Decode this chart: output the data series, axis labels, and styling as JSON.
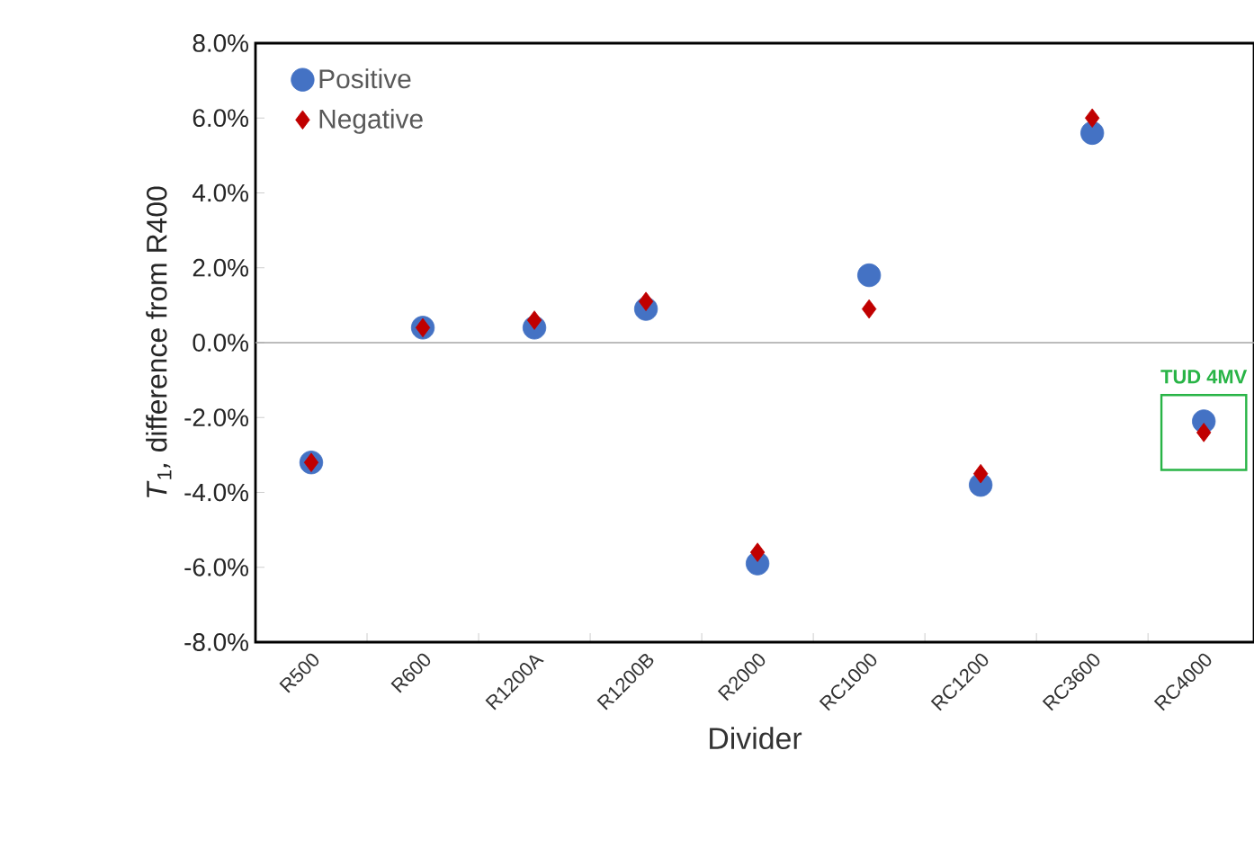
{
  "chart_data": {
    "type": "scatter",
    "xlabel": "Divider",
    "ylabel": "*T*$_{1}$*,* difference from R400",
    "categories": [
      "R500",
      "R600",
      "R1200A",
      "R1200B",
      "R2000",
      "RC1000",
      "RC1200",
      "RC3600",
      "RC4000"
    ],
    "series": [
      {
        "name": "Positive",
        "color": "#4472c4",
        "marker": "circle",
        "values": [
          -3.2,
          0.4,
          0.4,
          0.9,
          -5.9,
          1.8,
          -3.8,
          5.6,
          -2.1
        ]
      },
      {
        "name": "Negative",
        "color": "#c00000",
        "marker": "diamond",
        "values": [
          -3.2,
          0.4,
          0.6,
          1.1,
          -5.6,
          0.9,
          -3.5,
          6.0,
          -2.4
        ]
      }
    ],
    "ylim": [
      -8,
      8
    ],
    "yticks": [
      {
        "value": -8,
        "label": "-8.0%"
      },
      {
        "value": -6,
        "label": "-6.0%"
      },
      {
        "value": -4,
        "label": "-4.0%"
      },
      {
        "value": -2,
        "label": "-2.0%"
      },
      {
        "value": 0,
        "label": "0.0%"
      },
      {
        "value": 2,
        "label": "2.0%"
      },
      {
        "value": 4,
        "label": "4.0%"
      },
      {
        "value": 6,
        "label": "6.0%"
      },
      {
        "value": 8,
        "label": "8.0%"
      }
    ],
    "ref_lines": [
      {
        "axis": "y",
        "value": 0,
        "color": "#a6a6a6"
      }
    ],
    "annotations": [
      {
        "text": "TUD 4MV",
        "x": "RC4000",
        "y": -2.4
      }
    ],
    "legend": "top left",
    "grid": false
  }
}
